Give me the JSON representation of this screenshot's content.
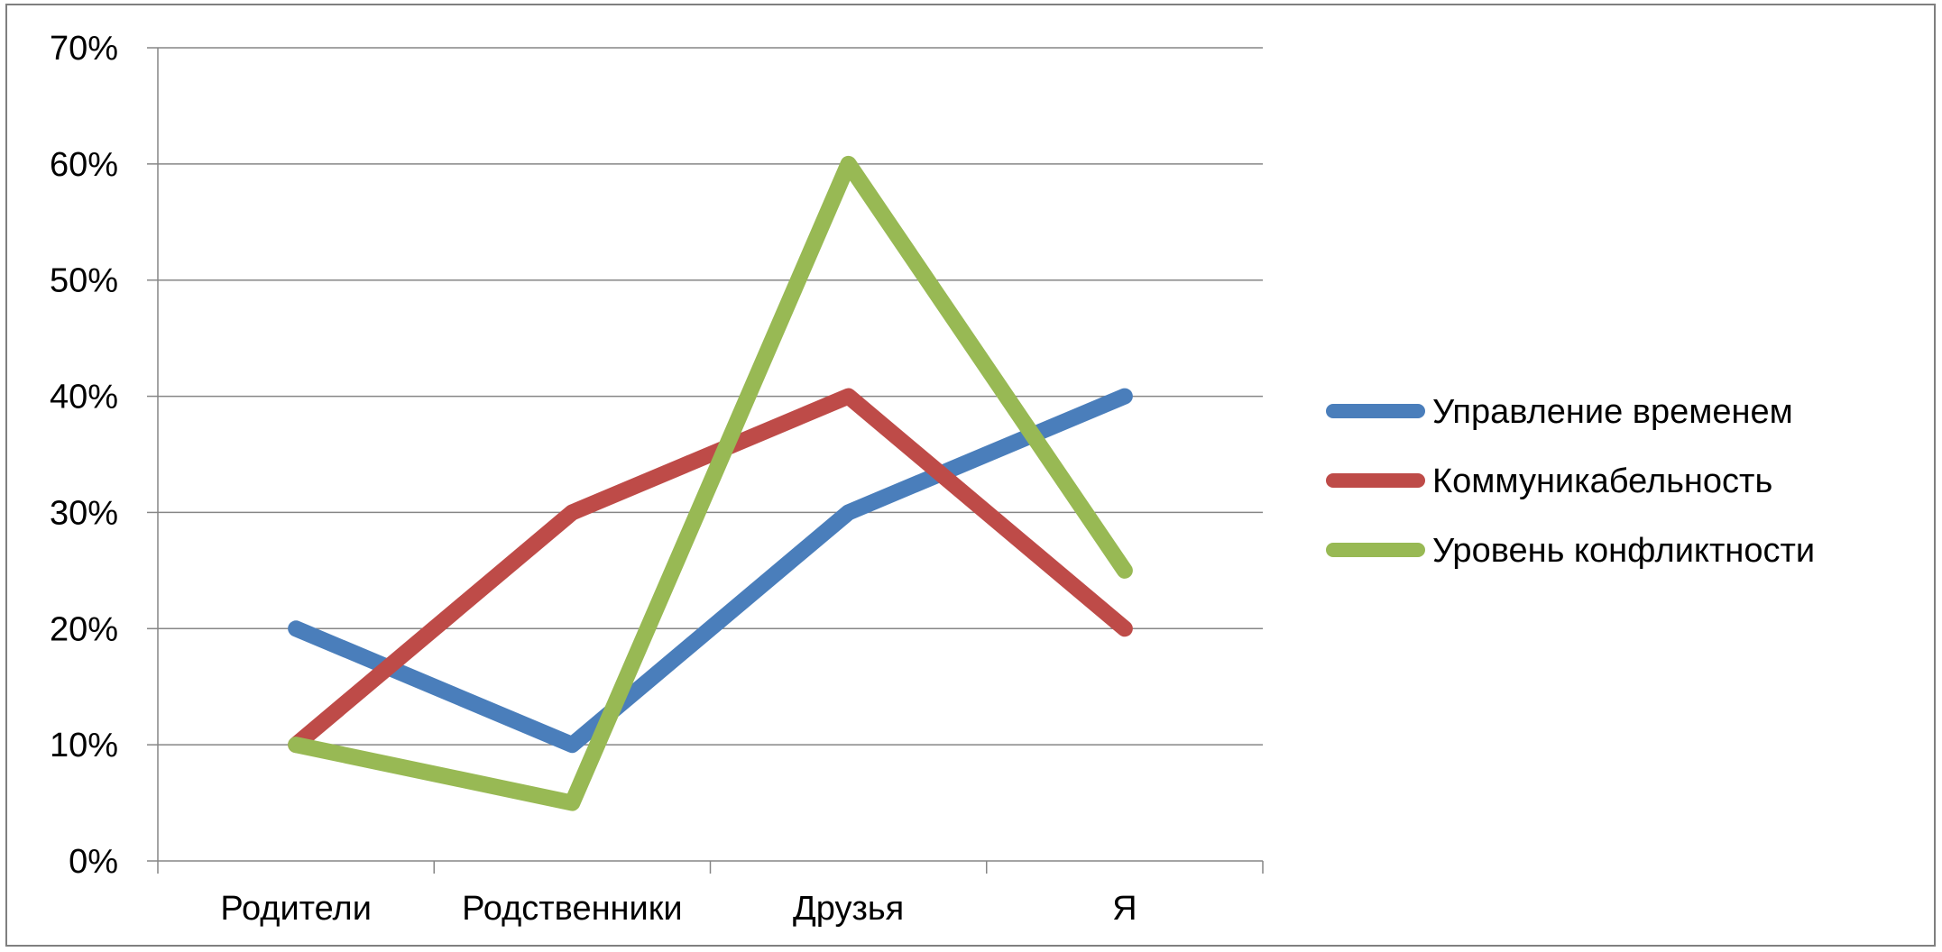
{
  "chart_data": {
    "type": "line",
    "title": "",
    "xlabel": "",
    "ylabel": "",
    "categories": [
      "Родители",
      "Родственники",
      "Друзья",
      "Я"
    ],
    "y_tick_labels": [
      "0%",
      "10%",
      "20%",
      "30%",
      "40%",
      "50%",
      "60%",
      "70%"
    ],
    "ylim": [
      0,
      70
    ],
    "grid": "horizontal",
    "legend_position": "right",
    "series": [
      {
        "name": "Управление временем",
        "color": "#4a7ebb",
        "values": [
          20,
          10,
          30,
          40
        ]
      },
      {
        "name": "Коммуникабельность",
        "color": "#be4b48",
        "values": [
          10,
          30,
          40,
          20
        ]
      },
      {
        "name": "Уровень конфликтности",
        "color": "#98b954",
        "values": [
          10,
          5,
          60,
          25
        ]
      }
    ]
  }
}
